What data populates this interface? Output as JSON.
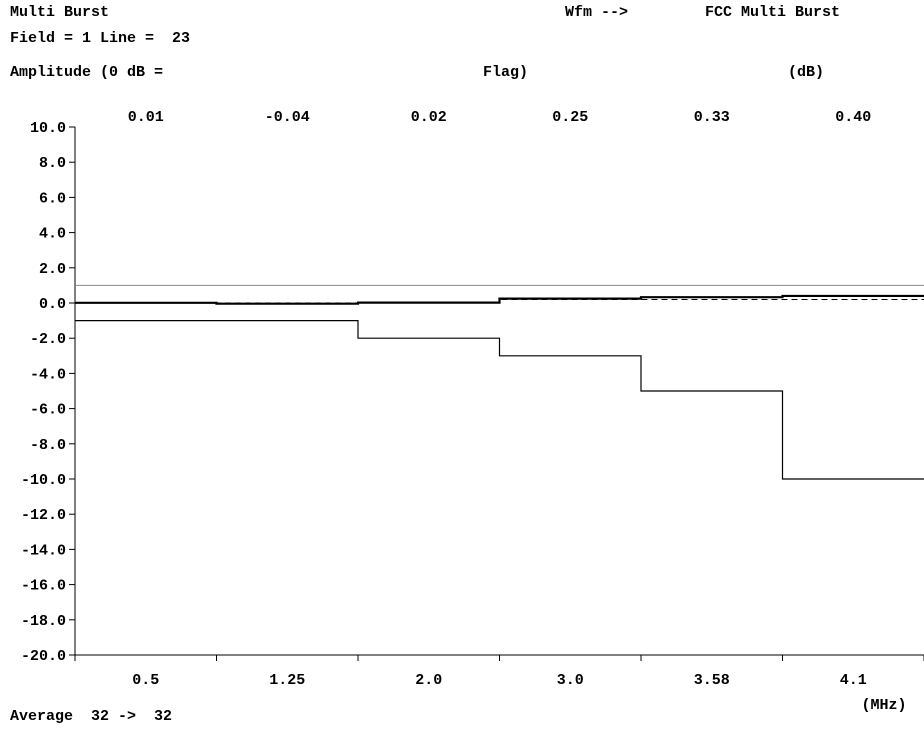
{
  "header": {
    "title": "Multi Burst",
    "waveform_label": "Wfm -->",
    "waveform_name": "FCC Multi Burst",
    "field_line": "Field = 1 Line =  23",
    "amplitude_label": "Amplitude (0 dB =",
    "reference": "Flag)",
    "unit": "(dB)"
  },
  "footer": {
    "average": "Average  32 ->  32"
  },
  "chart_data": {
    "type": "line",
    "title": "Multi Burst",
    "ylabel": "Amplitude (0 dB = Flag) (dB)",
    "xlabel": "(MHz)",
    "ylim": [
      -20.0,
      10.0
    ],
    "yticks": [
      "10.0",
      "8.0",
      "6.0",
      "4.0",
      "2.0",
      "0.0",
      "-2.0",
      "-4.0",
      "-6.0",
      "-8.0",
      "-10.0",
      "-12.0",
      "-14.0",
      "-16.0",
      "-18.0",
      "-20.0"
    ],
    "categories": [
      "0.5",
      "1.25",
      "2.0",
      "3.0",
      "3.58",
      "4.1"
    ],
    "measured_labels": [
      "0.01",
      "-0.04",
      "0.02",
      "0.25",
      "0.33",
      "0.40"
    ],
    "series": [
      {
        "values": [
          0.01,
          -0.04,
          0.02,
          0.25,
          0.33,
          0.4
        ],
        "style": "step",
        "stroke": "#000000",
        "width": 2.2
      },
      {
        "values": [
          1.0,
          1.0,
          1.0,
          1.0,
          1.0,
          1.0
        ],
        "style": "step",
        "stroke": "#8a8a8a",
        "width": 1
      },
      {
        "values": [
          0.0,
          0.0,
          0.0,
          0.2,
          0.2,
          0.2
        ],
        "style": "dashed",
        "stroke": "#000000",
        "width": 1
      },
      {
        "values": [
          -1.0,
          -1.0,
          -2.0,
          -3.0,
          -5.0,
          -10.0
        ],
        "style": "step",
        "stroke": "#000000",
        "width": 1.2
      }
    ],
    "grid": false,
    "legend": "none"
  }
}
